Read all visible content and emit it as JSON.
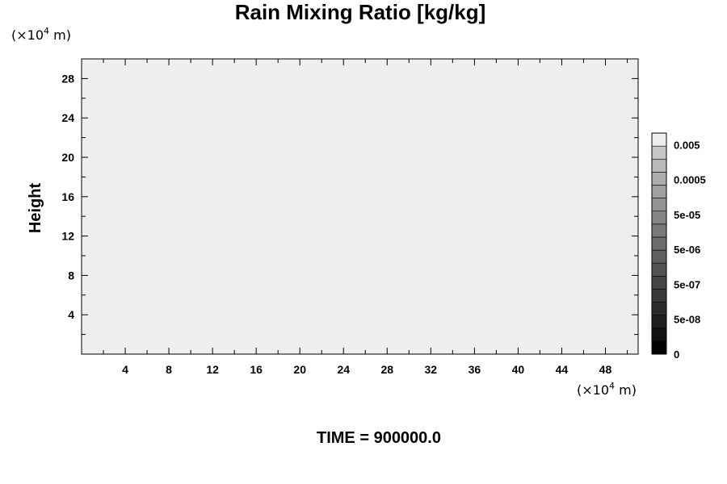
{
  "chart_data": {
    "type": "heatmap",
    "title": "Rain Mixing Ratio [kg/kg]",
    "ylabel": "Height",
    "xlabel": "",
    "x_unit": {
      "prefix": "(×10",
      "exp": "4",
      "suffix": " m)"
    },
    "y_unit": {
      "prefix": "(×10",
      "exp": "4",
      "suffix": " m)"
    },
    "xlim": [
      0,
      51
    ],
    "ylim": [
      0,
      30
    ],
    "x_ticks": [
      4,
      8,
      12,
      16,
      20,
      24,
      28,
      32,
      36,
      40,
      44,
      48
    ],
    "x_tick_labels": [
      "4",
      "8",
      "12",
      "16",
      "20",
      "24",
      "28",
      "32",
      "36",
      "40",
      "44",
      "48"
    ],
    "y_ticks": [
      4,
      8,
      12,
      16,
      20,
      24,
      28
    ],
    "y_tick_labels": [
      "4",
      "8",
      "12",
      "16",
      "20",
      "24",
      "28"
    ],
    "field_level": 16,
    "colorbar": {
      "levels": 17,
      "colors": [
        "#000000",
        "#111111",
        "#1e1e1e",
        "#2b2b2b",
        "#383838",
        "#454545",
        "#525252",
        "#5f5f5f",
        "#6c6c6c",
        "#797979",
        "#868686",
        "#939393",
        "#a0a0a0",
        "#adadad",
        "#bababa",
        "#c7c7c7",
        "#eeeeee"
      ],
      "labels": [
        {
          "text": "0",
          "level": 0
        },
        {
          "text": "5e-08",
          "level": 3
        },
        {
          "text": "5e-07",
          "level": 6
        },
        {
          "text": "5e-06",
          "level": 9
        },
        {
          "text": "5e-05",
          "level": 12
        },
        {
          "text": "0.0005",
          "level": 15
        },
        {
          "text": "0.005",
          "level": 18
        }
      ]
    },
    "time_label": "TIME = 900000.0"
  }
}
